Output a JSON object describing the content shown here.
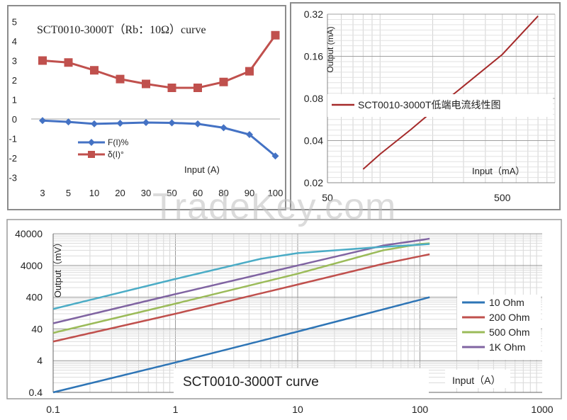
{
  "watermark": "TradeKey.com",
  "chart_data": [
    {
      "type": "line",
      "title": "SCT0010-3000T（Rb：10Ω）curve",
      "xlabel": "Input (A)",
      "ylabel": "",
      "categories": [
        "3",
        "5",
        "10",
        "20",
        "30",
        "50",
        "60",
        "80",
        "90",
        "100"
      ],
      "x_tick_labels": [
        "3",
        "5",
        "10",
        "20",
        "30",
        "50",
        "60",
        "80",
        "90",
        "100"
      ],
      "ylim": [
        -3,
        5
      ],
      "y_ticks": [
        -3,
        -2,
        -1,
        0,
        1,
        2,
        3,
        4,
        5
      ],
      "grid": false,
      "legend_position": "bottom-left",
      "series": [
        {
          "name": "F(I)%",
          "color": "#4472C4",
          "marker": "diamond",
          "values": [
            -0.08,
            -0.15,
            -0.25,
            -0.22,
            -0.18,
            -0.2,
            -0.25,
            -0.45,
            -0.8,
            -1.9
          ]
        },
        {
          "name": "δ(I)°",
          "color": "#C0504D",
          "marker": "square",
          "values": [
            3.0,
            2.9,
            2.5,
            2.05,
            1.8,
            1.6,
            1.6,
            1.9,
            2.45,
            4.3
          ]
        }
      ]
    },
    {
      "type": "line",
      "title": "",
      "xlabel": "Input（mA）",
      "ylabel": "Output (mA)",
      "x_scale": "log",
      "y_scale": "log",
      "xlim": [
        50,
        1000
      ],
      "ylim": [
        0.02,
        0.32
      ],
      "x_tick_labels": [
        "50",
        "500"
      ],
      "y_tick_labels": [
        "0.02",
        "0.04",
        "0.08",
        "0.16",
        "0.32"
      ],
      "grid": true,
      "legend_position": "middle",
      "series": [
        {
          "name": "SCT0010-3000T低端电流线性图",
          "color": "#A52A2A",
          "x": [
            80,
            100,
            150,
            200,
            300,
            500,
            800
          ],
          "values": [
            0.025,
            0.032,
            0.048,
            0.065,
            0.098,
            0.165,
            0.31
          ]
        }
      ]
    },
    {
      "type": "line",
      "title": "SCT0010-3000T curve",
      "xlabel": "Input（A）",
      "ylabel": "Output（mV）",
      "x_scale": "log",
      "y_scale": "log",
      "xlim": [
        0.1,
        1000
      ],
      "ylim": [
        0.4,
        40000
      ],
      "x_tick_labels": [
        "0.1",
        "1",
        "10",
        "100",
        "1000"
      ],
      "y_tick_labels": [
        "0.4",
        "4",
        "40",
        "400",
        "4000",
        "40000"
      ],
      "grid": true,
      "legend_position": "right",
      "series": [
        {
          "name": "10 Ohm",
          "color": "#2E75B6",
          "x": [
            0.1,
            1,
            10,
            100,
            120
          ],
          "values": [
            0.4,
            3.5,
            33,
            330,
            400
          ]
        },
        {
          "name": "200 Ohm",
          "color": "#C0504D",
          "x": [
            0.1,
            1,
            10,
            50,
            100,
            120
          ],
          "values": [
            16,
            120,
            1000,
            4500,
            7800,
            9000
          ]
        },
        {
          "name": "500 Ohm",
          "color": "#9BBB59",
          "x": [
            0.1,
            1,
            10,
            50,
            100,
            120
          ],
          "values": [
            30,
            250,
            2200,
            12000,
            19000,
            20000
          ]
        },
        {
          "name": "1K Ohm",
          "color": "#8064A2",
          "x": [
            0.1,
            1,
            10,
            50,
            100,
            120
          ],
          "values": [
            60,
            500,
            4000,
            17000,
            25000,
            28000
          ]
        },
        {
          "name": "",
          "color": "#4BACC6",
          "x": [
            0.1,
            1,
            5,
            10,
            50,
            100,
            120
          ],
          "values": [
            170,
            1500,
            6500,
            9800,
            15500,
            18000,
            19000
          ]
        }
      ]
    }
  ]
}
